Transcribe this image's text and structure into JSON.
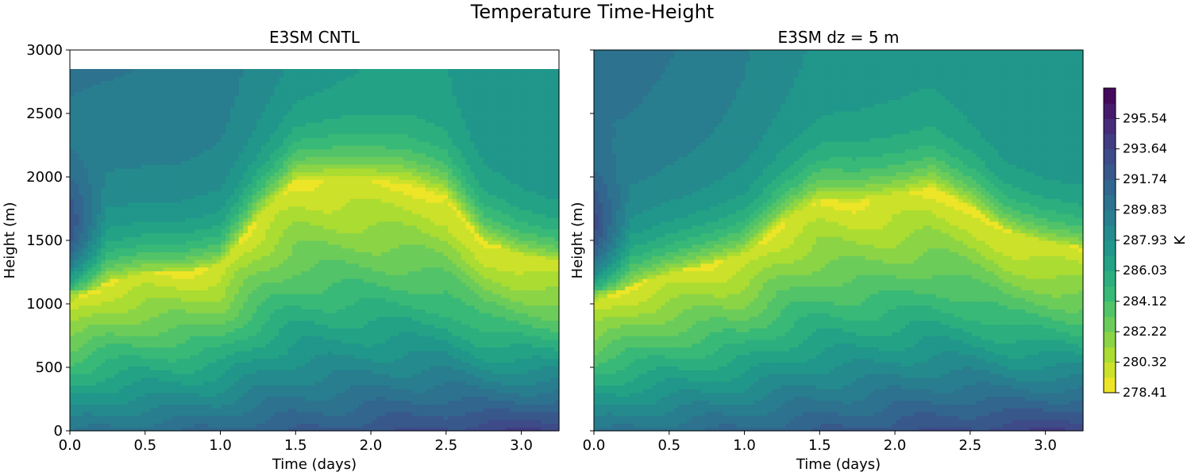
{
  "chart_data": {
    "type": "heatmap",
    "title": "Temperature Time-Height",
    "colormap": "viridis_r",
    "panels": [
      {
        "title": "E3SM CNTL",
        "xlabel": "Time (days)",
        "ylabel": "Height (m)",
        "xlim": [
          0,
          3.25
        ],
        "ylim": [
          0,
          3000
        ],
        "data_top": 2860,
        "xticks": [
          "0.0",
          "0.5",
          "1.0",
          "1.5",
          "2.0",
          "2.5",
          "3.0"
        ],
        "yticks": [
          "0",
          "500",
          "1000",
          "1500",
          "2000",
          "2500",
          "3000"
        ],
        "inversion_height_m": [
          [
            0.0,
            1020
          ],
          [
            0.25,
            1180
          ],
          [
            0.5,
            1250
          ],
          [
            0.75,
            1260
          ],
          [
            1.0,
            1320
          ],
          [
            1.25,
            1700
          ],
          [
            1.5,
            1980
          ],
          [
            1.75,
            1990
          ],
          [
            2.0,
            1980
          ],
          [
            2.25,
            1950
          ],
          [
            2.5,
            1850
          ],
          [
            2.75,
            1500
          ],
          [
            3.0,
            1400
          ],
          [
            3.25,
            1350
          ]
        ]
      },
      {
        "title": "E3SM dz = 5 m",
        "xlabel": "Time (days)",
        "ylabel": "Height (m)",
        "xlim": [
          0,
          3.25
        ],
        "ylim": [
          0,
          3000
        ],
        "data_top": 3000,
        "xticks": [
          "0.0",
          "0.5",
          "1.0",
          "1.5",
          "2.0",
          "2.5",
          "3.0"
        ],
        "yticks": [],
        "inversion_height_m": [
          [
            0.0,
            1020
          ],
          [
            0.25,
            1150
          ],
          [
            0.5,
            1250
          ],
          [
            0.75,
            1320
          ],
          [
            1.0,
            1400
          ],
          [
            1.25,
            1650
          ],
          [
            1.5,
            1820
          ],
          [
            1.75,
            1810
          ],
          [
            2.0,
            1850
          ],
          [
            2.25,
            1920
          ],
          [
            2.5,
            1780
          ],
          [
            2.75,
            1580
          ],
          [
            3.0,
            1500
          ],
          [
            3.25,
            1450
          ]
        ]
      }
    ],
    "colorbar": {
      "label": "K",
      "min": 278.41,
      "max": 297.44,
      "tick_labels": [
        "278.41",
        "280.32",
        "282.22",
        "284.12",
        "286.03",
        "287.93",
        "289.83",
        "291.74",
        "293.64",
        "295.54"
      ]
    }
  }
}
